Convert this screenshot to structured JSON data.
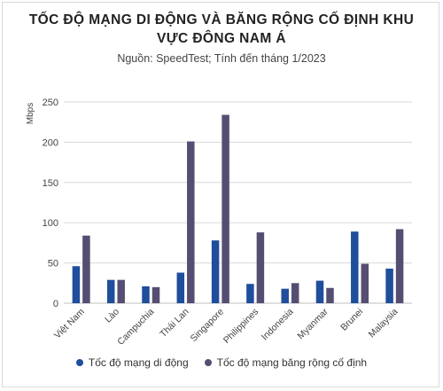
{
  "header": {
    "title_line1": "TỐC ĐỘ MẠNG DI ĐỘNG VÀ BĂNG RỘNG CỐ ĐỊNH KHU",
    "title_line2": "VỰC ĐÔNG NAM Á",
    "subtitle": "Nguồn: SpeedTest; Tính đến tháng 1/2023"
  },
  "colors": {
    "mobile": "#1f4e9c",
    "fixed": "#564e72",
    "grid": "#d9d9d9",
    "axis_text": "#444444"
  },
  "chart_data": {
    "type": "bar",
    "title": "TỐC ĐỘ MẠNG DI ĐỘNG VÀ BĂNG RỘNG CỐ ĐỊNH KHU VỰC ĐÔNG NAM Á",
    "subtitle": "Nguồn: SpeedTest; Tính đến tháng 1/2023",
    "xlabel": "",
    "ylabel": "Mbps",
    "ylim": [
      0,
      250
    ],
    "yticks": [
      0,
      50,
      100,
      150,
      200,
      250
    ],
    "grid": true,
    "legend_position": "bottom",
    "categories": [
      "Việt Nam",
      "Lào",
      "Campuchia",
      "Thái Lan",
      "Singapore",
      "Philippines",
      "Indonesia",
      "Myanmar",
      "Brunei",
      "Malaysia"
    ],
    "series": [
      {
        "name": "Tốc độ mạng di động",
        "color": "#1f4e9c",
        "values": [
          46,
          29,
          21,
          38,
          78,
          24,
          18,
          28,
          89,
          43
        ]
      },
      {
        "name": "Tốc độ mạng băng rộng cố định",
        "color": "#564e72",
        "values": [
          84,
          29,
          20,
          201,
          234,
          88,
          25,
          19,
          49,
          92
        ]
      }
    ]
  }
}
